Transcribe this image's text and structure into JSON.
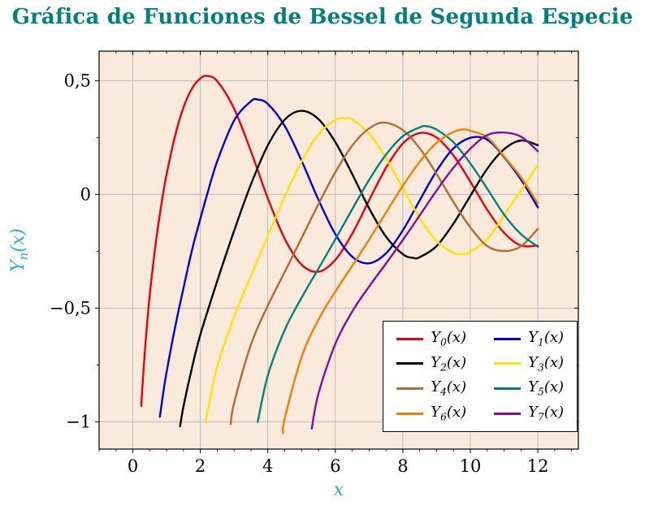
{
  "chart_data": {
    "type": "line",
    "title": "Gráfica de Funciones de Bessel de Segunda Especie",
    "title_color": "#008080",
    "xlabel": "x",
    "ylabel": {
      "base": "Y",
      "sub": "n",
      "arg": "(x)"
    },
    "axis_label_color": "#29abe2",
    "xlim": [
      -1.0,
      13.2
    ],
    "ylim": [
      -1.12,
      0.63
    ],
    "background": "#faeadb",
    "grid": true,
    "grid_color": "#b9b9b9",
    "frame_color": "#000000",
    "xticks": [
      {
        "v": 0,
        "t": "0"
      },
      {
        "v": 2,
        "t": "2"
      },
      {
        "v": 4,
        "t": "4"
      },
      {
        "v": 6,
        "t": "6"
      },
      {
        "v": 8,
        "t": "8"
      },
      {
        "v": 10,
        "t": "10"
      },
      {
        "v": 12,
        "t": "12"
      }
    ],
    "yticks": [
      {
        "v": 0.5,
        "t": "0,5"
      },
      {
        "v": 0,
        "t": "0"
      },
      {
        "v": -0.5,
        "t": "−0,5"
      },
      {
        "v": -1,
        "t": "−1"
      }
    ],
    "minor_x_step": 0.5,
    "minor_y_step": 0.25,
    "legend": {
      "position": "bottom-right",
      "columns": 2,
      "label_base": "Y",
      "label_arg": "(x)"
    },
    "series": [
      {
        "n": 0,
        "name": "Y_0(x)",
        "color": "#e8000f",
        "points": [
          [
            0.25,
            -0.93
          ],
          [
            0.3,
            -0.807
          ],
          [
            0.4,
            -0.606
          ],
          [
            0.5,
            -0.444
          ],
          [
            0.6,
            -0.309
          ],
          [
            0.7,
            -0.191
          ],
          [
            0.8,
            -0.087
          ],
          [
            0.9,
            0.006
          ],
          [
            1,
            0.088
          ],
          [
            1.25,
            0.257
          ],
          [
            1.5,
            0.382
          ],
          [
            1.75,
            0.465
          ],
          [
            2,
            0.51
          ],
          [
            2.2,
            0.521
          ],
          [
            2.5,
            0.498
          ],
          [
            3,
            0.377
          ],
          [
            3.5,
            0.189
          ],
          [
            4,
            -0.017
          ],
          [
            4.5,
            -0.195
          ],
          [
            5,
            -0.309
          ],
          [
            5.5,
            -0.34
          ],
          [
            6,
            -0.288
          ],
          [
            6.5,
            -0.173
          ],
          [
            7,
            -0.026
          ],
          [
            7.5,
            0.117
          ],
          [
            8,
            0.224
          ],
          [
            8.5,
            0.27
          ],
          [
            9,
            0.25
          ],
          [
            9.5,
            0.171
          ],
          [
            10,
            0.056
          ],
          [
            10.5,
            -0.068
          ],
          [
            11,
            -0.169
          ],
          [
            11.5,
            -0.225
          ],
          [
            12,
            -0.225
          ]
        ]
      },
      {
        "n": 1,
        "name": "Y_1(x)",
        "color": "#0000d8",
        "points": [
          [
            0.8,
            -0.978
          ],
          [
            0.9,
            -0.873
          ],
          [
            1,
            -0.781
          ],
          [
            1.25,
            -0.585
          ],
          [
            1.5,
            -0.412
          ],
          [
            1.75,
            -0.246
          ],
          [
            2,
            -0.107
          ],
          [
            2.2,
            0
          ],
          [
            2.5,
            0.146
          ],
          [
            3,
            0.325
          ],
          [
            3.5,
            0.41
          ],
          [
            3.7,
            0.417
          ],
          [
            4,
            0.398
          ],
          [
            4.5,
            0.301
          ],
          [
            5,
            0.148
          ],
          [
            5.5,
            -0.024
          ],
          [
            6,
            -0.175
          ],
          [
            6.5,
            -0.274
          ],
          [
            7,
            -0.303
          ],
          [
            7.5,
            -0.259
          ],
          [
            8,
            -0.158
          ],
          [
            8.5,
            -0.026
          ],
          [
            9,
            0.104
          ],
          [
            9.5,
            0.203
          ],
          [
            10,
            0.249
          ],
          [
            10.5,
            0.241
          ],
          [
            11,
            0.164
          ],
          [
            11.5,
            0.065
          ],
          [
            12,
            -0.057
          ]
        ]
      },
      {
        "n": 2,
        "name": "Y_2(x)",
        "color": "#000000",
        "points": [
          [
            1.4,
            -1.02
          ],
          [
            1.5,
            -0.932
          ],
          [
            1.75,
            -0.763
          ],
          [
            2,
            -0.617
          ],
          [
            2.5,
            -0.381
          ],
          [
            3,
            -0.16
          ],
          [
            3.5,
            0.045
          ],
          [
            4,
            0.216
          ],
          [
            4.5,
            0.329
          ],
          [
            5,
            0.368
          ],
          [
            5.5,
            0.331
          ],
          [
            6,
            0.23
          ],
          [
            6.5,
            0.089
          ],
          [
            7,
            -0.061
          ],
          [
            7.5,
            -0.186
          ],
          [
            8,
            -0.263
          ],
          [
            8.3,
            -0.279
          ],
          [
            8.5,
            -0.276
          ],
          [
            9,
            -0.227
          ],
          [
            9.5,
            -0.128
          ],
          [
            10,
            -0.006
          ],
          [
            10.5,
            0.113
          ],
          [
            11,
            0.199
          ],
          [
            11.5,
            0.237
          ],
          [
            12,
            0.216
          ]
        ]
      },
      {
        "n": 3,
        "name": "Y_3(x)",
        "color": "#ffe400",
        "points": [
          [
            2.15,
            -1.0
          ],
          [
            2.25,
            -0.93
          ],
          [
            2.5,
            -0.756
          ],
          [
            3,
            -0.539
          ],
          [
            3.5,
            -0.358
          ],
          [
            4,
            -0.182
          ],
          [
            4.5,
            -0.009
          ],
          [
            5,
            0.146
          ],
          [
            5.5,
            0.264
          ],
          [
            6,
            0.328
          ],
          [
            6.3,
            0.334
          ],
          [
            6.5,
            0.329
          ],
          [
            7,
            0.268
          ],
          [
            7.5,
            0.16
          ],
          [
            8,
            0.027
          ],
          [
            8.5,
            -0.104
          ],
          [
            9,
            -0.205
          ],
          [
            9.5,
            -0.257
          ],
          [
            9.8,
            -0.261
          ],
          [
            10,
            -0.251
          ],
          [
            10.5,
            -0.198
          ],
          [
            11,
            -0.092
          ],
          [
            11.5,
            0.017
          ],
          [
            12,
            0.129
          ]
        ]
      },
      {
        "n": 4,
        "name": "Y_4(x)",
        "color": "#b06e2e",
        "points": [
          [
            2.9,
            -1.01
          ],
          [
            3,
            -0.917
          ],
          [
            3.5,
            -0.66
          ],
          [
            4,
            -0.489
          ],
          [
            4.5,
            -0.341
          ],
          [
            5,
            -0.192
          ],
          [
            5.5,
            -0.042
          ],
          [
            6,
            0.098
          ],
          [
            6.5,
            0.215
          ],
          [
            7,
            0.29
          ],
          [
            7.45,
            0.316
          ],
          [
            8,
            0.283
          ],
          [
            8.5,
            0.203
          ],
          [
            9,
            0.09
          ],
          [
            9.5,
            -0.034
          ],
          [
            10,
            -0.145
          ],
          [
            10.5,
            -0.227
          ],
          [
            11,
            -0.249
          ],
          [
            11.5,
            -0.228
          ],
          [
            12,
            -0.151
          ]
        ]
      },
      {
        "n": 5,
        "name": "Y_5(x)",
        "color": "#008080",
        "points": [
          [
            3.7,
            -1.0
          ],
          [
            4,
            -0.796
          ],
          [
            4.5,
            -0.596
          ],
          [
            5,
            -0.454
          ],
          [
            5.5,
            -0.326
          ],
          [
            6,
            -0.197
          ],
          [
            6.5,
            -0.065
          ],
          [
            7,
            0.064
          ],
          [
            7.5,
            0.175
          ],
          [
            8,
            0.256
          ],
          [
            8.5,
            0.295
          ],
          [
            8.7,
            0.3
          ],
          [
            9,
            0.285
          ],
          [
            9.5,
            0.229
          ],
          [
            10,
            0.136
          ],
          [
            10.5,
            0.025
          ],
          [
            11,
            -0.089
          ],
          [
            11.5,
            -0.175
          ],
          [
            12,
            -0.23
          ]
        ]
      },
      {
        "n": 6,
        "name": "Y_6(x)",
        "color": "#f08000",
        "points": [
          [
            4.45,
            -1.05
          ],
          [
            4.5,
            -0.985
          ],
          [
            5,
            -0.715
          ],
          [
            5.5,
            -0.551
          ],
          [
            6,
            -0.427
          ],
          [
            6.5,
            -0.314
          ],
          [
            7,
            -0.199
          ],
          [
            7.5,
            -0.08
          ],
          [
            8,
            0.038
          ],
          [
            8.5,
            0.144
          ],
          [
            9,
            0.227
          ],
          [
            9.5,
            0.275
          ],
          [
            9.8,
            0.286
          ],
          [
            10,
            0.28
          ],
          [
            10.5,
            0.251
          ],
          [
            11,
            0.167
          ],
          [
            11.5,
            0.075
          ],
          [
            12,
            -0.04
          ]
        ]
      },
      {
        "n": 7,
        "name": "Y_7(x)",
        "color": "#80109d",
        "points": [
          [
            5.3,
            -1.03
          ],
          [
            5.5,
            -0.875
          ],
          [
            6,
            -0.657
          ],
          [
            6.5,
            -0.515
          ],
          [
            7,
            -0.405
          ],
          [
            7.5,
            -0.304
          ],
          [
            8,
            -0.2
          ],
          [
            8.5,
            -0.092
          ],
          [
            9,
            0.017
          ],
          [
            9.5,
            0.118
          ],
          [
            10,
            0.201
          ],
          [
            10.5,
            0.261
          ],
          [
            11,
            0.272
          ],
          [
            11.5,
            0.254
          ],
          [
            12,
            0.19
          ]
        ]
      }
    ]
  }
}
